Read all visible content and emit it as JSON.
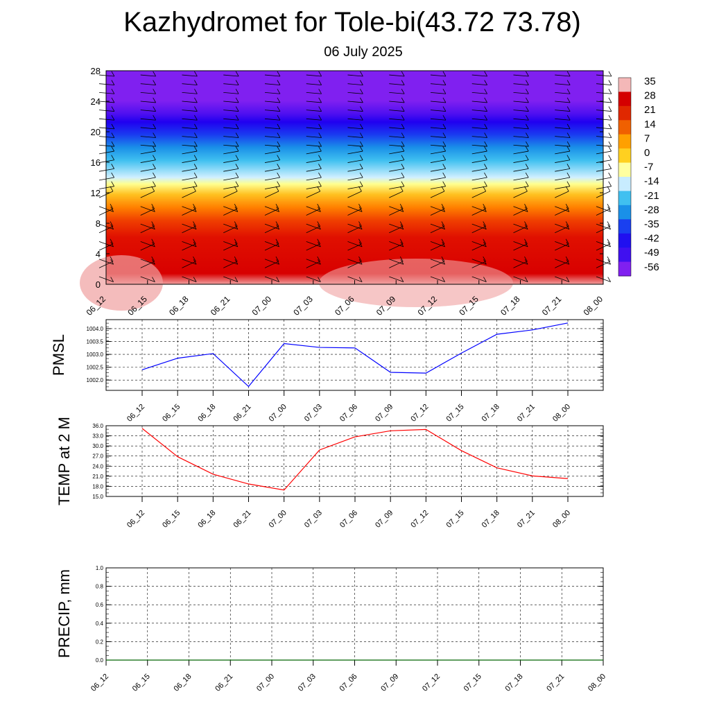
{
  "title": "Kazhydromet for Tole-bi(43.72 73.78)",
  "subtitle": "06 July 2025",
  "chart_data": [
    {
      "type": "heatmap",
      "name": "temperature-wind-cross-section",
      "x_categories": [
        "06_12",
        "06_15",
        "06_18",
        "06_21",
        "07_00",
        "07_03",
        "07_06",
        "07_09",
        "07_12",
        "07_15",
        "07_18",
        "07_21",
        "08_00"
      ],
      "y_ticks": [
        0,
        4,
        8,
        12,
        16,
        20,
        24,
        28
      ],
      "ylim": [
        0,
        28
      ],
      "colorbar": {
        "labels": [
          "35",
          "28",
          "21",
          "14",
          "7",
          "0",
          "-7",
          "-14",
          "-21",
          "-28",
          "-35",
          "-42",
          "-49",
          "-56"
        ],
        "colors": [
          "#f4b8b8",
          "#d40000",
          "#e02800",
          "#f06000",
          "#ffa000",
          "#ffd020",
          "#ffffa0",
          "#c8ecff",
          "#40c0f0",
          "#1a90e8",
          "#1a40f0",
          "#2010f0",
          "#4010f0",
          "#8020f0"
        ]
      },
      "wind_barbs": true
    },
    {
      "type": "line",
      "ylabel": "PMSL",
      "x_categories": [
        "06_12",
        "06_15",
        "06_18",
        "06_21",
        "07_00",
        "07_03",
        "07_06",
        "07_09",
        "07_12",
        "07_15",
        "07_18",
        "07_21",
        "08_00"
      ],
      "values": [
        1002.4,
        1002.85,
        1003.03,
        1001.75,
        1003.42,
        1003.27,
        1003.25,
        1002.3,
        1002.27,
        1003.05,
        1003.78,
        1003.95,
        1004.22
      ],
      "y_ticks": [
        "1002.0",
        "1002.5",
        "1003.0",
        "1003.5",
        "1004.0"
      ],
      "ylim": [
        1001.6,
        1004.35
      ],
      "color": "#0000ff",
      "grid": true
    },
    {
      "type": "line",
      "ylabel": "TEMP at 2 M",
      "x_categories": [
        "06_12",
        "06_15",
        "06_18",
        "06_21",
        "07_00",
        "07_03",
        "07_06",
        "07_09",
        "07_12",
        "07_15",
        "07_18",
        "07_21",
        "08_00"
      ],
      "values": [
        35.2,
        26.8,
        21.6,
        18.7,
        16.9,
        28.8,
        32.7,
        34.5,
        34.9,
        28.6,
        23.5,
        21.1,
        20.3
      ],
      "y_ticks": [
        "15.0",
        "18.0",
        "21.0",
        "24.0",
        "27.0",
        "30.0",
        "33.0",
        "36.0"
      ],
      "ylim": [
        15,
        36
      ],
      "color": "#ff0000",
      "grid": true
    },
    {
      "type": "line",
      "ylabel": "PRECIP, mm",
      "x_categories": [
        "06_12",
        "06_15",
        "06_18",
        "06_21",
        "07_00",
        "07_03",
        "07_06",
        "07_09",
        "07_12",
        "07_15",
        "07_18",
        "07_21",
        "08_00"
      ],
      "values": [
        0,
        0,
        0,
        0,
        0,
        0,
        0,
        0,
        0,
        0,
        0,
        0,
        0
      ],
      "y_ticks": [
        "0.0",
        "0.2",
        "0.4",
        "0.6",
        "0.8",
        "1.0"
      ],
      "ylim": [
        0,
        1
      ],
      "color": "#006400",
      "grid": true
    }
  ]
}
